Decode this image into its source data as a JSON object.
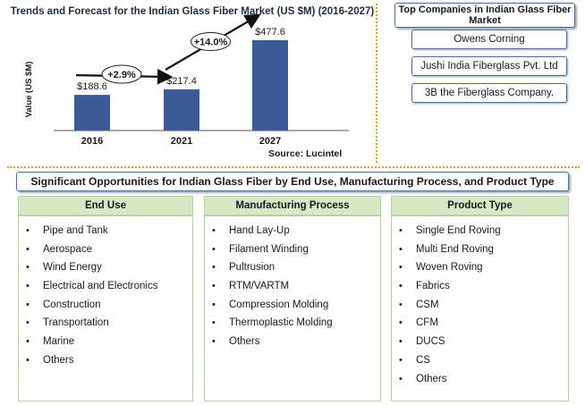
{
  "chart_data": {
    "type": "bar",
    "title": "Trends and Forecast for the Indian Glass Fiber Market (US $M) (2016-2027)",
    "categories": [
      "2016",
      "2021",
      "2027"
    ],
    "values": [
      188.6,
      217.4,
      477.6
    ],
    "value_labels": [
      "$188.6",
      "$217.4",
      "$477.6"
    ],
    "ylabel": "Value (US $M)",
    "xlabel": "",
    "ylim": [
      0,
      520
    ],
    "grid": false,
    "bar_color": "#3a5a98",
    "growth_annotations": [
      {
        "from": "2016",
        "to": "2021",
        "label": "+2.9%"
      },
      {
        "from": "2021",
        "to": "2027",
        "label": "+14.0%"
      }
    ],
    "source": "Source: Lucintel"
  },
  "top_companies": {
    "header": "Top Companies in Indian Glass Fiber Market",
    "items": [
      "Owens Corning",
      "Jushi India Fiberglass Pvt. Ltd",
      "3B the Fiberglass Company."
    ]
  },
  "opportunities": {
    "header": "Significant Opportunities for Indian Glass Fiber by End Use, Manufacturing Process, and Product Type",
    "columns": [
      {
        "title": "End Use",
        "items": [
          "Pipe and Tank",
          "Aerospace",
          "Wind Energy",
          "Electrical and Electronics",
          "Construction",
          "Transportation",
          "Marine",
          "Others"
        ]
      },
      {
        "title": "Manufacturing Process",
        "items": [
          "Hand Lay-Up",
          "Filament Winding",
          "Pultrusion",
          "RTM/VARTM",
          "Compression Molding",
          "Thermoplastic Molding",
          "Others"
        ]
      },
      {
        "title": "Product Type",
        "items": [
          "Single End Roving",
          "Multi End Roving",
          "Woven Roving",
          "Fabrics",
          "CSM",
          "CFM",
          "DUCS",
          "CS",
          "Others"
        ]
      }
    ]
  },
  "colors": {
    "accent_divider": "#e0a020",
    "box_border": "#4a6fa5",
    "column_header_bg": "#d6e9c6"
  }
}
